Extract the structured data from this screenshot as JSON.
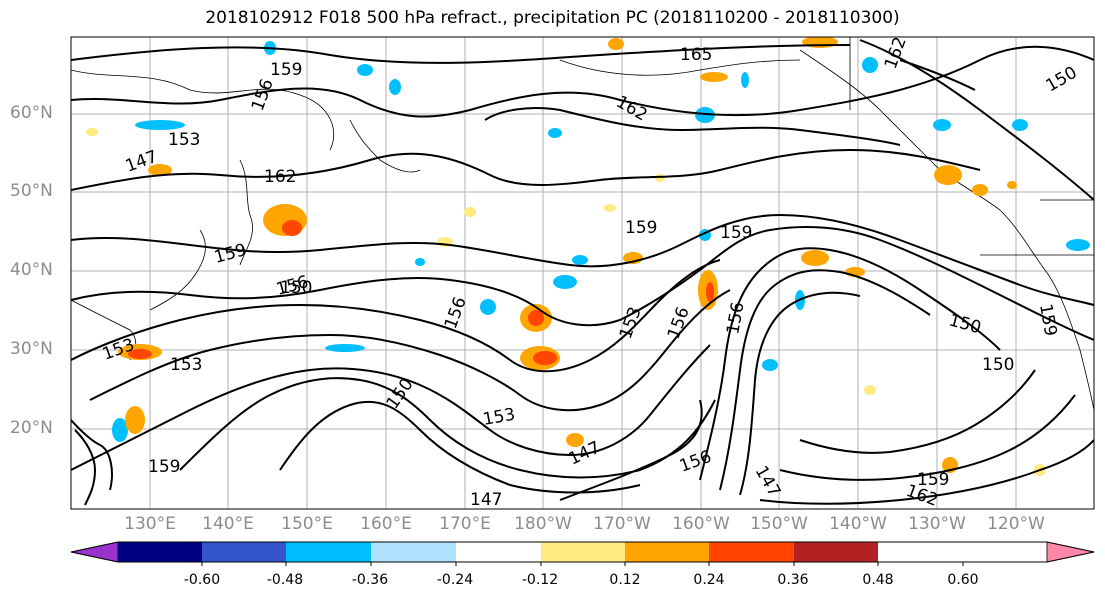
{
  "title": "2018102912 F018 500 hPa refract., precipitation PC (2018110200 - 2018110300)",
  "map": {
    "lat_labels": [
      "60°N",
      "50°N",
      "40°N",
      "30°N",
      "20°N"
    ],
    "lon_labels": [
      "130°E",
      "140°E",
      "150°E",
      "160°E",
      "170°E",
      "180°W",
      "170°W",
      "160°W",
      "150°W",
      "140°W",
      "130°W",
      "120°W"
    ],
    "contour_labels": [
      "165",
      "162",
      "159",
      "156",
      "153",
      "150",
      "147",
      "162",
      "159",
      "159",
      "159",
      "153",
      "153",
      "156",
      "156",
      "156",
      "150",
      "150",
      "153",
      "150",
      "147",
      "147",
      "159",
      "156",
      "162",
      "159",
      "153",
      "150",
      "147",
      "159",
      "156",
      "162"
    ],
    "contour_color": "#000000"
  },
  "colorbar": {
    "colors": [
      "#9933cc",
      "#000080",
      "#3355cc",
      "#00bfff",
      "#b0e2ff",
      "#ffffff",
      "#ffeb80",
      "#ffa500",
      "#ff4500",
      "#b22222",
      "#ff88aa"
    ],
    "tick_labels": [
      "-0.60",
      "-0.48",
      "-0.36",
      "-0.24",
      "-0.12",
      "0.12",
      "0.24",
      "0.36",
      "0.48",
      "0.60"
    ]
  }
}
